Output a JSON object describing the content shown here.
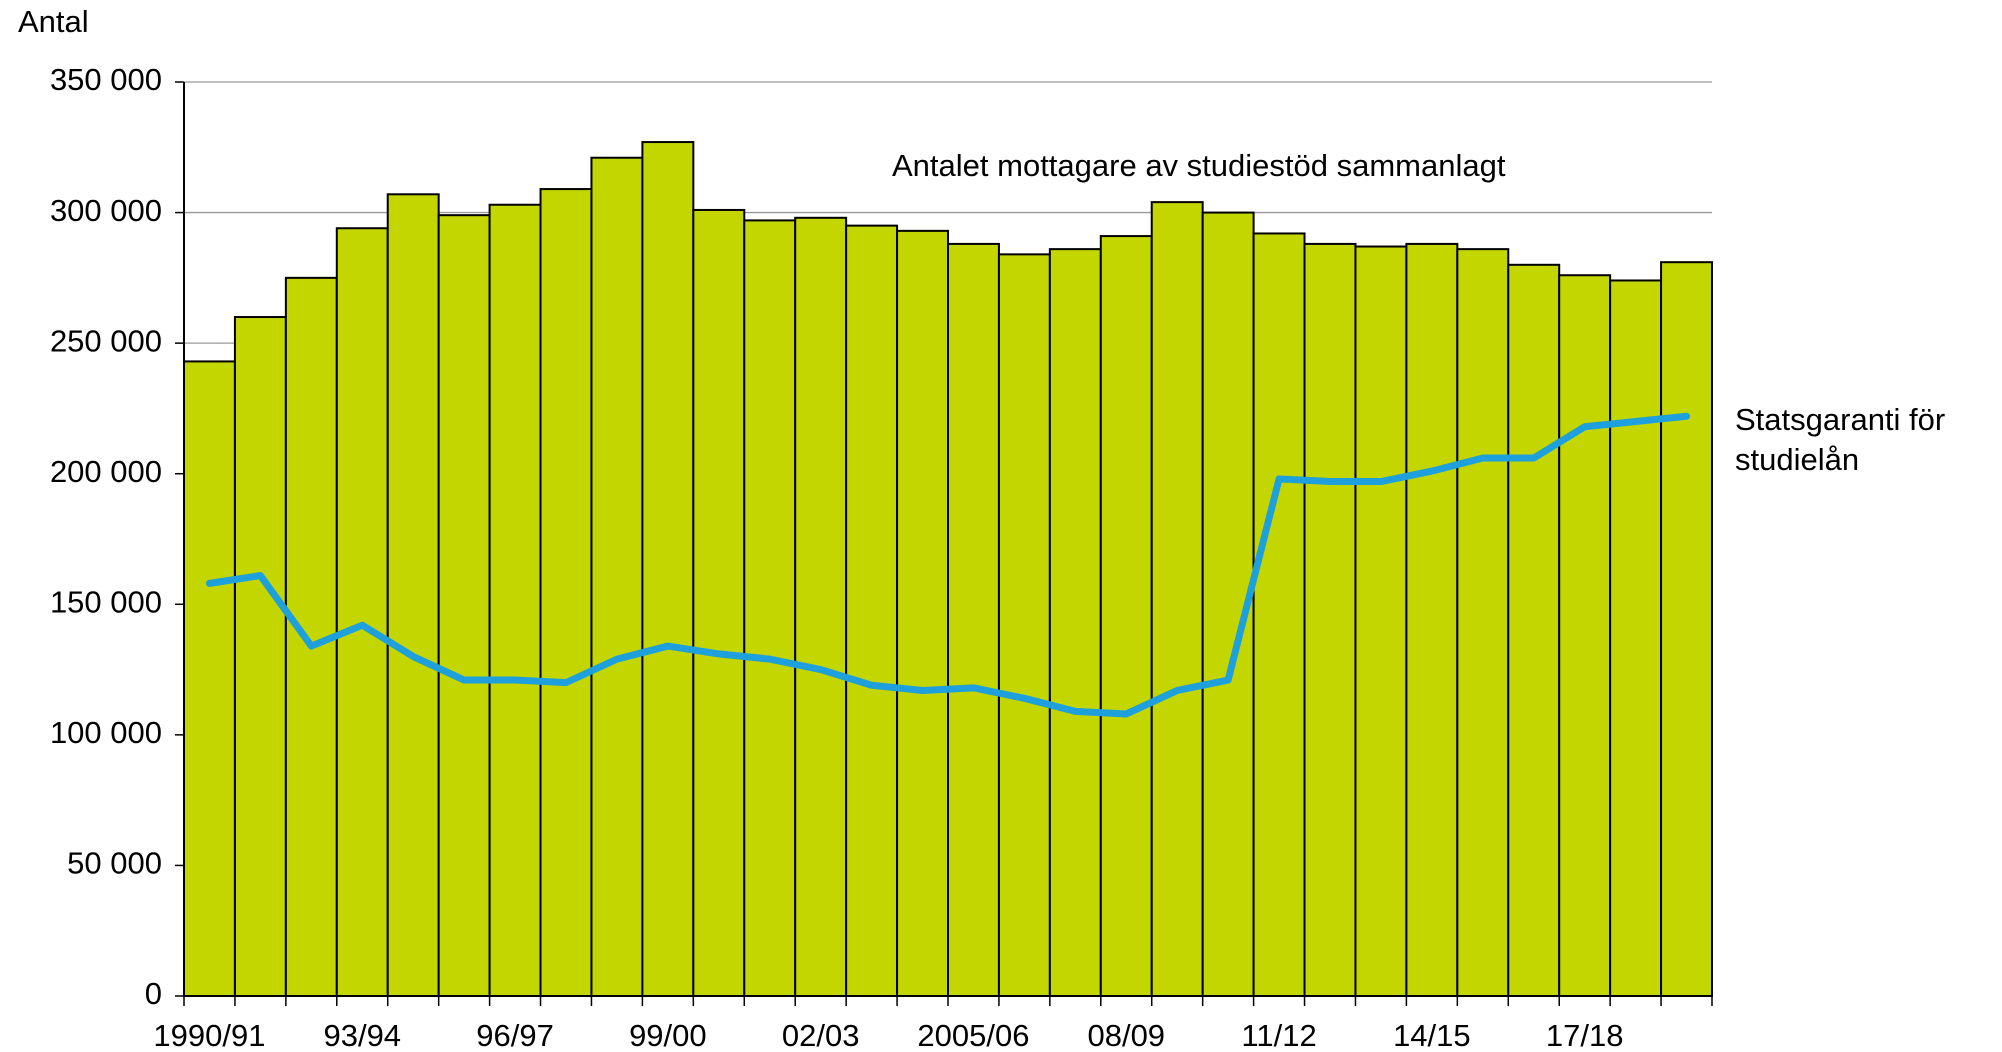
{
  "chart_data": {
    "type": "bar",
    "y_label": "Antal",
    "categories": [
      "1990/91",
      null,
      null,
      "93/94",
      null,
      null,
      "96/97",
      null,
      null,
      "99/00",
      null,
      null,
      "02/03",
      null,
      null,
      "2005/06",
      null,
      null,
      "08/09",
      null,
      null,
      "11/12",
      null,
      null,
      "14/15",
      null,
      null,
      "17/18",
      null,
      null
    ],
    "series": [
      {
        "name": "Antalet mottagare av studiestöd sammanlagt",
        "type": "bar",
        "color": "#c4d600",
        "values": [
          243000,
          260000,
          275000,
          294000,
          307000,
          299000,
          303000,
          309000,
          321000,
          327000,
          301000,
          297000,
          298000,
          295000,
          293000,
          288000,
          284000,
          286000,
          291000,
          304000,
          300000,
          292000,
          288000,
          287000,
          288000,
          286000,
          280000,
          276000,
          274000,
          281000
        ]
      },
      {
        "name": "Statsgaranti för studielån",
        "type": "line",
        "color": "#1ea0dc",
        "values": [
          158000,
          161000,
          134000,
          142000,
          130000,
          121000,
          121000,
          120000,
          129000,
          134000,
          131000,
          129000,
          125000,
          119000,
          117000,
          118000,
          114000,
          109000,
          108000,
          117000,
          121000,
          198000,
          197000,
          197000,
          201000,
          206000,
          206000,
          218000,
          220000,
          222000
        ]
      }
    ],
    "ylim": [
      0,
      350000
    ],
    "yticks": [
      0,
      {
        "value": 50000,
        "label": "50 000"
      },
      {
        "value": 100000,
        "label": "100 000"
      },
      {
        "value": 150000,
        "label": "150 000"
      },
      {
        "value": 200000,
        "label": "200 000"
      },
      {
        "value": 250000,
        "label": "250 000"
      },
      {
        "value": 300000,
        "label": "300 000"
      },
      {
        "value": 350000,
        "label": "350 000"
      }
    ],
    "grid": true
  }
}
